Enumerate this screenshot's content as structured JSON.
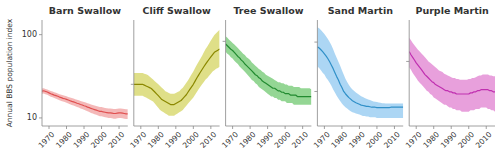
{
  "chart_data": [
    {
      "type": "line",
      "title": "Barn Swallow",
      "ylabel": "Annual BBS population index",
      "log": "y",
      "x": [
        1966,
        1967,
        1968,
        1969,
        1970,
        1971,
        1972,
        1973,
        1974,
        1975,
        1976,
        1977,
        1978,
        1979,
        1980,
        1981,
        1982,
        1983,
        1984,
        1985,
        1986,
        1987,
        1988,
        1989,
        1990,
        1991,
        1992,
        1993,
        1994,
        1995,
        1996,
        1997,
        1998,
        1999,
        2000,
        2001,
        2002,
        2003,
        2004,
        2005,
        2006,
        2007,
        2008,
        2009,
        2010,
        2011,
        2012,
        2013,
        2014,
        2015
      ],
      "xlim": [
        1966,
        2015
      ],
      "xticks": [
        1970,
        1980,
        1990,
        2000,
        2010
      ],
      "ylim": [
        8,
        150
      ],
      "yticks": [
        10,
        100
      ],
      "series": [
        {
          "type": "area",
          "color": "#f0a0a0",
          "values": [
            22.5,
            22.7,
            22.3,
            22.0,
            21.5,
            21.0,
            20.7,
            20.3,
            20.0,
            19.7,
            19.3,
            19.0,
            18.7,
            18.5,
            18.2,
            17.9,
            17.6,
            17.3,
            17.1,
            16.8,
            16.5,
            16.3,
            16.0,
            15.8,
            15.5,
            15.3,
            15.0,
            14.8,
            14.5,
            14.3,
            14.1,
            13.9,
            13.7,
            13.5,
            13.5,
            13.3,
            13.2,
            13.1,
            13.0,
            13.0,
            12.9,
            12.8,
            12.8,
            12.9,
            13.0,
            13.0,
            12.9,
            12.8,
            12.7,
            12.7
          ],
          "lower": [
            19.5,
            19.7,
            19.3,
            19.0,
            18.5,
            18.0,
            17.7,
            17.3,
            17.0,
            16.7,
            16.3,
            16.0,
            15.7,
            15.5,
            15.2,
            14.9,
            14.6,
            14.3,
            14.1,
            13.8,
            13.5,
            13.3,
            13.0,
            12.8,
            12.5,
            12.3,
            12.0,
            11.8,
            11.5,
            11.3,
            11.1,
            10.9,
            10.7,
            10.5,
            10.5,
            10.3,
            10.2,
            10.1,
            10.0,
            10.0,
            9.9,
            9.8,
            9.8,
            9.9,
            10.0,
            10.0,
            9.9,
            9.8,
            9.7,
            9.7
          ]
        },
        {
          "type": "line",
          "color": "#e05050",
          "values": [
            21,
            21.2,
            20.8,
            20.5,
            20.0,
            19.5,
            19.2,
            18.8,
            18.5,
            18.2,
            17.8,
            17.5,
            17.2,
            17.0,
            16.7,
            16.4,
            16.1,
            15.8,
            15.6,
            15.3,
            15.0,
            14.8,
            14.5,
            14.3,
            14.0,
            13.8,
            13.5,
            13.3,
            13.0,
            12.8,
            12.6,
            12.4,
            12.2,
            12.0,
            12.0,
            11.8,
            11.7,
            11.6,
            11.5,
            11.5,
            11.4,
            11.3,
            11.3,
            11.4,
            11.5,
            11.5,
            11.4,
            11.3,
            11.2,
            11.2
          ]
        }
      ]
    },
    {
      "type": "line",
      "title": "Cliff Swallow",
      "log": "y",
      "tick_labels": "x",
      "x": [
        1966,
        1967,
        1968,
        1969,
        1970,
        1971,
        1972,
        1973,
        1974,
        1975,
        1976,
        1977,
        1978,
        1979,
        1980,
        1981,
        1982,
        1983,
        1984,
        1985,
        1986,
        1987,
        1988,
        1989,
        1990,
        1991,
        1992,
        1993,
        1994,
        1995,
        1996,
        1997,
        1998,
        1999,
        2000,
        2001,
        2002,
        2003,
        2004,
        2005,
        2006,
        2007,
        2008,
        2009,
        2010,
        2011,
        2012,
        2013,
        2014,
        2015
      ],
      "xlim": [
        1966,
        2015
      ],
      "xticks": [
        1970,
        1980,
        1990,
        2000,
        2010
      ],
      "ylim": [
        60,
        220
      ],
      "yticks": [
        100
      ],
      "series": [
        {
          "type": "area",
          "color": "#d4d460",
          "values": [
            115,
            115,
            115,
            115,
            115,
            115,
            114,
            113,
            112,
            110,
            108,
            106,
            104,
            102,
            100,
            98,
            96,
            94,
            92,
            91,
            90,
            89,
            89,
            89,
            90,
            91,
            92,
            94,
            96,
            99,
            102,
            105,
            109,
            113,
            117,
            122,
            127,
            132,
            137,
            142,
            148,
            154,
            159,
            165,
            171,
            177,
            183,
            187,
            191,
            195
          ],
          "lower": [
            87,
            87,
            87,
            87,
            87,
            87,
            86,
            85,
            84,
            83,
            82,
            81,
            79,
            77,
            75,
            73,
            72,
            71,
            70,
            69,
            68,
            68,
            68,
            68,
            69,
            70,
            71,
            72,
            73,
            75,
            77,
            79,
            81,
            83,
            85,
            88,
            91,
            94,
            97,
            100,
            103,
            106,
            108,
            111,
            114,
            117,
            119,
            121,
            122,
            124
          ]
        },
        {
          "type": "line",
          "color": "#8b8800",
          "values": [
            100,
            100,
            100,
            100,
            100,
            100,
            99,
            98,
            97,
            96,
            95,
            93,
            91,
            89,
            87,
            85,
            83,
            82,
            81,
            80,
            79,
            78,
            78,
            78,
            79,
            80,
            81,
            82,
            84,
            86,
            88,
            91,
            94,
            97,
            100,
            104,
            108,
            112,
            116,
            120,
            124,
            128,
            132,
            136,
            140,
            144,
            148,
            150,
            152,
            154
          ]
        }
      ]
    },
    {
      "type": "line",
      "title": "Tree Swallow",
      "log": "y",
      "tick_labels": "x",
      "x": [
        1966,
        1967,
        1968,
        1969,
        1970,
        1971,
        1972,
        1973,
        1974,
        1975,
        1976,
        1977,
        1978,
        1979,
        1980,
        1981,
        1982,
        1983,
        1984,
        1985,
        1986,
        1987,
        1988,
        1989,
        1990,
        1991,
        1992,
        1993,
        1994,
        1995,
        1996,
        1997,
        1998,
        1999,
        2000,
        2001,
        2002,
        2003,
        2004,
        2005,
        2006,
        2007,
        2008,
        2009,
        2010,
        2011,
        2012,
        2013,
        2014,
        2015
      ],
      "xlim": [
        1966,
        2015
      ],
      "xticks": [
        1970,
        1980,
        1990,
        2000,
        2010
      ],
      "ylim": [
        2,
        15
      ],
      "yticks": [
        10
      ],
      "series": [
        {
          "type": "area",
          "color": "#70c870",
          "values": [
            11.0,
            10.7,
            10.3,
            10.0,
            9.7,
            9.4,
            9.1,
            8.8,
            8.5,
            8.2,
            7.9,
            7.7,
            7.4,
            7.2,
            7.0,
            6.7,
            6.5,
            6.3,
            6.1,
            5.9,
            5.8,
            5.6,
            5.5,
            5.3,
            5.2,
            5.1,
            5.0,
            4.9,
            4.8,
            4.7,
            4.6,
            4.6,
            4.5,
            4.5,
            4.4,
            4.4,
            4.3,
            4.3,
            4.3,
            4.2,
            4.2,
            4.2,
            4.2,
            4.1,
            4.1,
            4.1,
            4.1,
            4.1,
            4.1,
            4.0
          ],
          "lower": [
            8.2,
            7.9,
            7.7,
            7.4,
            7.2,
            6.9,
            6.7,
            6.5,
            6.2,
            6.0,
            5.8,
            5.6,
            5.4,
            5.2,
            5.0,
            4.8,
            4.7,
            4.5,
            4.4,
            4.2,
            4.1,
            4.0,
            3.9,
            3.8,
            3.7,
            3.6,
            3.5,
            3.5,
            3.4,
            3.4,
            3.3,
            3.3,
            3.2,
            3.2,
            3.2,
            3.1,
            3.1,
            3.1,
            3.1,
            3.0,
            3.0,
            3.0,
            3.0,
            3.0,
            3.0,
            3.0,
            3.0,
            3.0,
            3.0,
            3.0
          ]
        },
        {
          "type": "line",
          "color": "#228b30",
          "values": [
            9.5,
            9.2,
            8.9,
            8.6,
            8.4,
            8.1,
            7.8,
            7.5,
            7.3,
            7.0,
            6.8,
            6.5,
            6.3,
            6.1,
            5.9,
            5.7,
            5.5,
            5.3,
            5.2,
            5.0,
            4.9,
            4.7,
            4.6,
            4.5,
            4.4,
            4.3,
            4.2,
            4.1,
            4.1,
            4.0,
            3.9,
            3.9,
            3.8,
            3.8,
            3.7,
            3.7,
            3.7,
            3.6,
            3.6,
            3.6,
            3.6,
            3.5,
            3.5,
            3.5,
            3.5,
            3.5,
            3.5,
            3.5,
            3.5,
            3.5
          ]
        }
      ]
    },
    {
      "type": "line",
      "title": "Sand Martin",
      "log": "y",
      "tick_labels": "x",
      "x": [
        1966,
        1967,
        1968,
        1969,
        1970,
        1971,
        1972,
        1973,
        1974,
        1975,
        1976,
        1977,
        1978,
        1979,
        1980,
        1981,
        1982,
        1983,
        1984,
        1985,
        1986,
        1987,
        1988,
        1989,
        1990,
        1991,
        1992,
        1993,
        1994,
        1995,
        1996,
        1997,
        1998,
        1999,
        2000,
        2001,
        2002,
        2003,
        2004,
        2005,
        2006,
        2007,
        2008,
        2009,
        2010,
        2011,
        2012,
        2013,
        2014,
        2015
      ],
      "xlim": [
        1966,
        2015
      ],
      "xticks": [
        1970,
        1980,
        1990,
        2000,
        2010
      ],
      "ylim": [
        2,
        280
      ],
      "yticks": [
        10,
        100
      ],
      "series": [
        {
          "type": "area",
          "color": "#90c8f0",
          "values": [
            200,
            190,
            175,
            160,
            145,
            130,
            115,
            100,
            86,
            72,
            58,
            48,
            40,
            33,
            27,
            22,
            18,
            15.5,
            13.5,
            12.0,
            11.0,
            10.2,
            9.5,
            9.0,
            8.5,
            8.0,
            7.7,
            7.4,
            7.1,
            6.9,
            6.7,
            6.5,
            6.3,
            6.2,
            6.1,
            6.0,
            5.9,
            5.8,
            5.8,
            5.7,
            5.7,
            5.7,
            5.7,
            5.7,
            5.7,
            5.7,
            5.7,
            5.7,
            5.7,
            5.7
          ],
          "lower": [
            32,
            30,
            27,
            24,
            22,
            19,
            17,
            15,
            13,
            11,
            9.5,
            8.2,
            7.2,
            6.4,
            5.7,
            5.2,
            4.8,
            4.5,
            4.2,
            4.0,
            3.8,
            3.7,
            3.6,
            3.5,
            3.4,
            3.3,
            3.2,
            3.2,
            3.1,
            3.1,
            3.0,
            3.0,
            3.0,
            3.0,
            2.9,
            2.9,
            2.9,
            2.9,
            2.9,
            2.9,
            2.9,
            2.9,
            2.9,
            2.9,
            2.9,
            2.9,
            2.9,
            2.9,
            2.9,
            2.9
          ]
        },
        {
          "type": "line",
          "color": "#3090c8",
          "values": [
            80,
            76,
            70,
            64,
            58,
            52,
            46,
            40,
            34,
            29,
            24,
            20,
            17,
            14,
            12,
            10,
            9,
            8.2,
            7.5,
            7.0,
            6.5,
            6.2,
            5.9,
            5.7,
            5.5,
            5.3,
            5.2,
            5.1,
            5.0,
            5.0,
            4.9,
            4.8,
            4.8,
            4.8,
            4.7,
            4.7,
            4.7,
            4.7,
            4.7,
            4.7,
            4.7,
            4.7,
            4.8,
            4.8,
            4.8,
            4.8,
            4.8,
            4.8,
            4.8,
            4.8
          ]
        }
      ]
    },
    {
      "type": "line",
      "title": "Purple Martin",
      "log": "y",
      "tick_labels": "x",
      "x": [
        1966,
        1967,
        1968,
        1969,
        1970,
        1971,
        1972,
        1973,
        1974,
        1975,
        1976,
        1977,
        1978,
        1979,
        1980,
        1981,
        1982,
        1983,
        1984,
        1985,
        1986,
        1987,
        1988,
        1989,
        1990,
        1991,
        1992,
        1993,
        1994,
        1995,
        1996,
        1997,
        1998,
        1999,
        2000,
        2001,
        2002,
        2003,
        2004,
        2005,
        2006,
        2007,
        2008,
        2009,
        2010,
        2011,
        2012,
        2013,
        2014,
        2015
      ],
      "xlim": [
        1966,
        2015
      ],
      "xticks": [
        1970,
        1980,
        1990,
        2000,
        2010
      ],
      "ylim": [
        4,
        18
      ],
      "yticks": [
        10
      ],
      "series": [
        {
          "type": "area",
          "color": "#e080d0",
          "values": [
            14.0,
            13.5,
            13.0,
            12.6,
            12.2,
            11.8,
            11.5,
            11.2,
            10.9,
            10.6,
            10.3,
            10.0,
            9.8,
            9.6,
            9.4,
            9.2,
            9.0,
            8.8,
            8.7,
            8.6,
            8.4,
            8.3,
            8.2,
            8.1,
            8.0,
            7.9,
            7.9,
            7.8,
            7.8,
            7.7,
            7.7,
            7.7,
            7.7,
            7.7,
            7.8,
            7.8,
            7.9,
            7.9,
            8.0,
            8.1,
            8.2,
            8.2,
            8.3,
            8.3,
            8.3,
            8.3,
            8.2,
            8.2,
            8.1,
            8.1
          ],
          "lower": [
            9.2,
            8.9,
            8.5,
            8.2,
            7.9,
            7.6,
            7.4,
            7.2,
            7.0,
            6.8,
            6.6,
            6.5,
            6.3,
            6.2,
            6.0,
            5.9,
            5.8,
            5.7,
            5.6,
            5.5,
            5.4,
            5.4,
            5.3,
            5.2,
            5.2,
            5.1,
            5.1,
            5.0,
            5.0,
            5.0,
            4.9,
            4.9,
            4.9,
            4.9,
            4.9,
            5.0,
            5.0,
            5.0,
            5.1,
            5.1,
            5.1,
            5.2,
            5.2,
            5.2,
            5.2,
            5.1,
            5.1,
            5.0,
            5.0,
            4.9
          ]
        },
        {
          "type": "line",
          "color": "#c030b0",
          "values": [
            11.5,
            11.0,
            10.6,
            10.2,
            9.8,
            9.5,
            9.2,
            8.9,
            8.6,
            8.3,
            8.1,
            7.9,
            7.7,
            7.5,
            7.4,
            7.2,
            7.1,
            7.0,
            6.9,
            6.8,
            6.7,
            6.6,
            6.6,
            6.5,
            6.5,
            6.4,
            6.4,
            6.3,
            6.3,
            6.3,
            6.3,
            6.3,
            6.3,
            6.3,
            6.3,
            6.4,
            6.4,
            6.5,
            6.5,
            6.6,
            6.6,
            6.7,
            6.7,
            6.7,
            6.7,
            6.7,
            6.6,
            6.6,
            6.5,
            6.5
          ]
        }
      ]
    }
  ]
}
